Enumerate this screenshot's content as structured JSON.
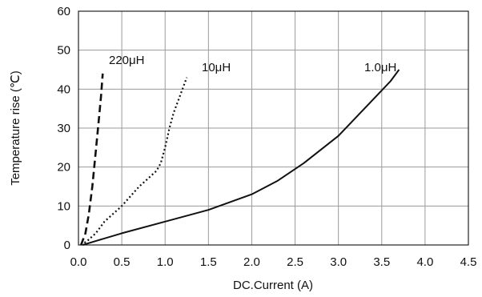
{
  "chart_data": {
    "type": "line",
    "xlabel": "DC.Current (A)",
    "ylabel": "Temperature rise (℃)",
    "xlim": [
      0,
      4.5
    ],
    "ylim": [
      0,
      60
    ],
    "x_ticks": [
      "0.0",
      "0.5",
      "1.0",
      "1.5",
      "2.0",
      "2.5",
      "3.0",
      "3.5",
      "4.0",
      "4.5"
    ],
    "y_ticks": [
      "0",
      "10",
      "20",
      "30",
      "40",
      "50",
      "60"
    ],
    "grid": true,
    "series": [
      {
        "name": "220μH",
        "style": "dashed",
        "x": [
          0.03,
          0.08,
          0.12,
          0.16,
          0.2,
          0.23,
          0.26,
          0.28
        ],
        "y": [
          0,
          3,
          8,
          15,
          24,
          31,
          38,
          44
        ]
      },
      {
        "name": "10μH",
        "style": "dotted",
        "x": [
          0.03,
          0.1,
          0.2,
          0.3,
          0.4,
          0.5,
          0.6,
          0.7,
          0.8,
          0.9,
          0.95,
          1.0,
          1.05,
          1.1,
          1.15,
          1.2,
          1.25
        ],
        "y": [
          0,
          1,
          3,
          6,
          8,
          10,
          12.5,
          15,
          17,
          19,
          21,
          25,
          30,
          34,
          37,
          40,
          43
        ]
      },
      {
        "name": "1.0μH",
        "style": "solid",
        "x": [
          0.05,
          0.2,
          0.5,
          1.0,
          1.5,
          2.0,
          2.3,
          2.6,
          3.0,
          3.3,
          3.6,
          3.7
        ],
        "y": [
          0,
          1,
          3,
          6,
          9,
          13,
          16.5,
          21,
          28,
          35,
          42,
          45
        ]
      }
    ]
  }
}
